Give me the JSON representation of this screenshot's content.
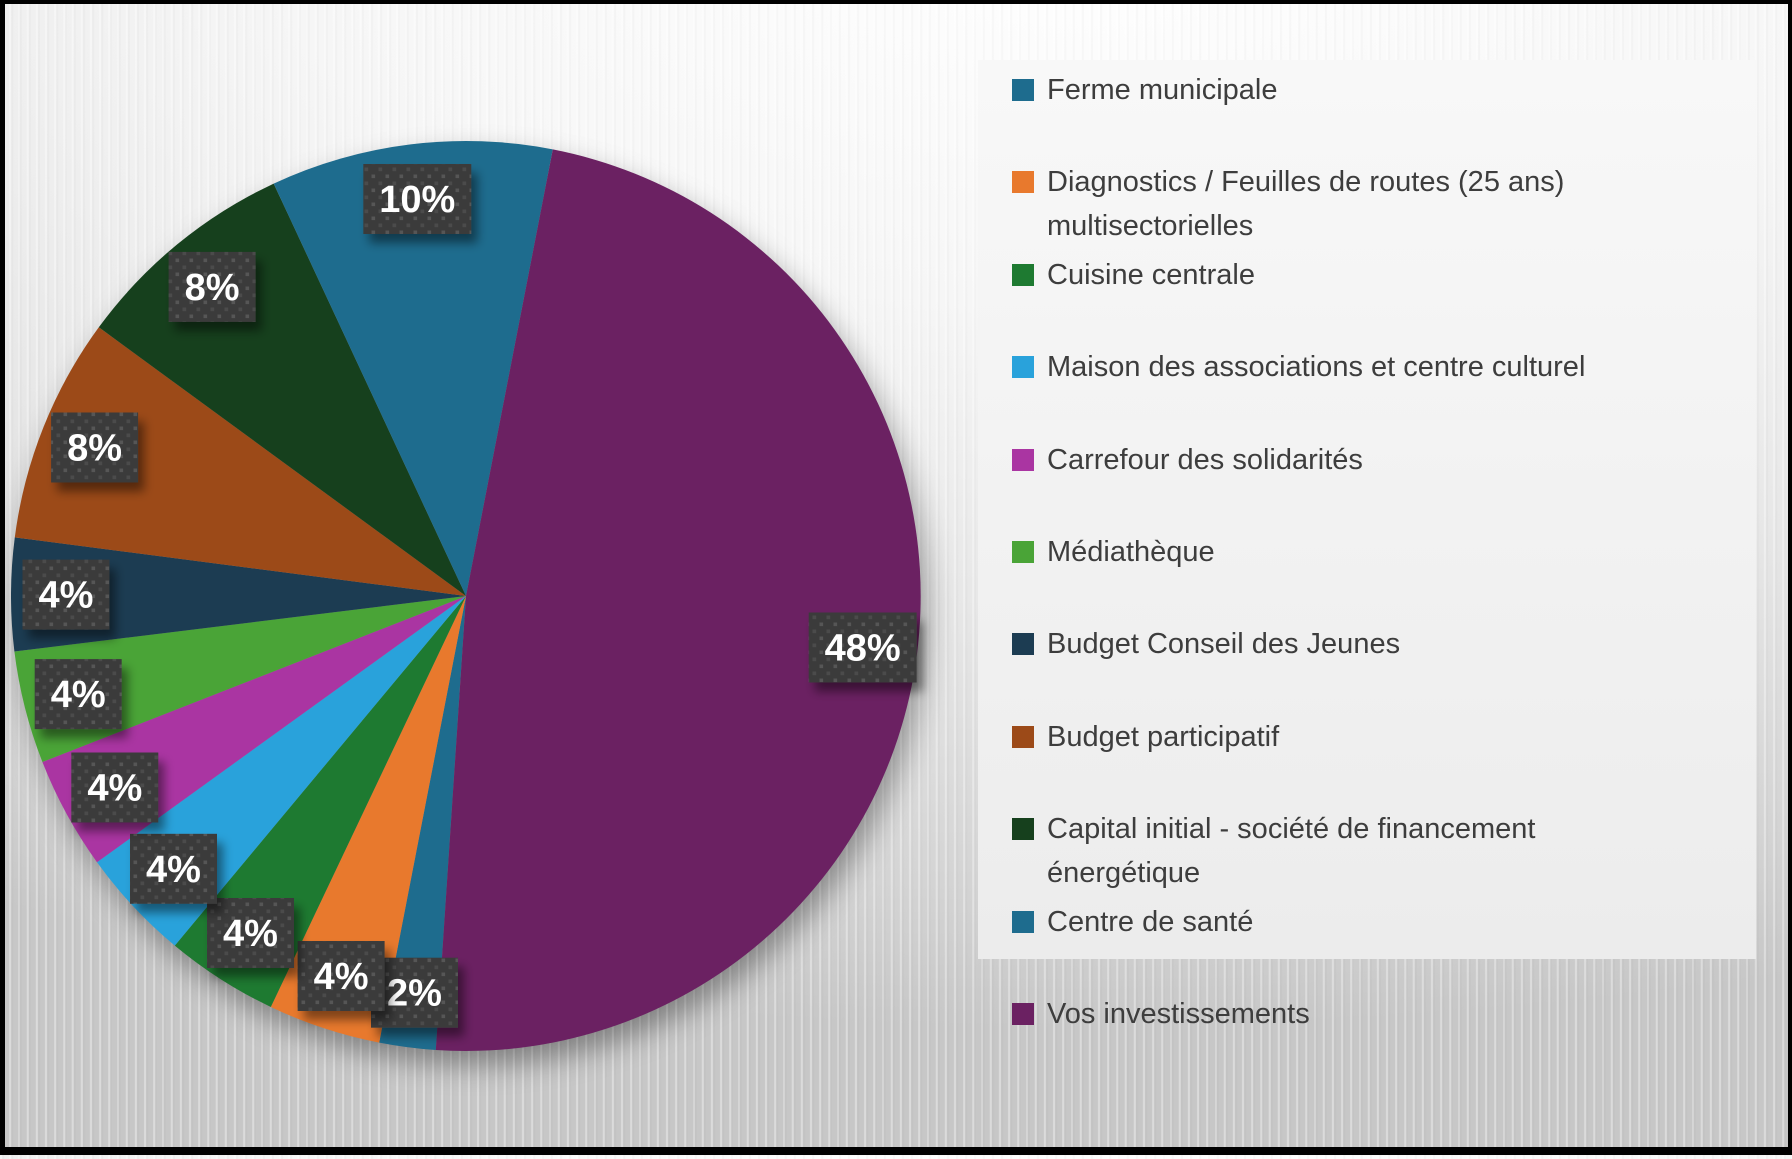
{
  "chart_data": {
    "type": "pie",
    "title": "",
    "legend_position": "right",
    "direction": "clockwise",
    "start_angle_deg": 183.8,
    "label_style": {
      "box_background": "#3b3b3b",
      "box_dot_color": "#555555",
      "text_color": "#ffffff"
    },
    "series": [
      {
        "name": "Ferme municipale",
        "value": 2,
        "label": "2%",
        "color": "#1e6c8e"
      },
      {
        "name": "Diagnostics / Feuilles de routes (25 ans)\nmultisectorielles",
        "value": 4,
        "label": "4%",
        "color": "#e8792d"
      },
      {
        "name": "Cuisine centrale",
        "value": 4,
        "label": "4%",
        "color": "#1e7a31"
      },
      {
        "name": "Maison des associations et centre culturel",
        "value": 4,
        "label": "4%",
        "color": "#29a2db"
      },
      {
        "name": "Carrefour des solidarités",
        "value": 4,
        "label": "4%",
        "color": "#aa35a2"
      },
      {
        "name": "Médiathèque",
        "value": 4,
        "label": "4%",
        "color": "#4aa437"
      },
      {
        "name": "Budget Conseil des Jeunes",
        "value": 4,
        "label": "4%",
        "color": "#1c3c52"
      },
      {
        "name": "Budget participatif",
        "value": 8,
        "label": "8%",
        "color": "#9c4a18"
      },
      {
        "name": "Capital initial - société de financement\nénergétique",
        "value": 8,
        "label": "8%",
        "color": "#16401d"
      },
      {
        "name": "Centre de santé",
        "value": 10,
        "label": "10%",
        "color": "#1e6c8e"
      },
      {
        "name": "Vos investissements",
        "value": 48,
        "label": "48%",
        "color": "#6b2162"
      }
    ]
  }
}
